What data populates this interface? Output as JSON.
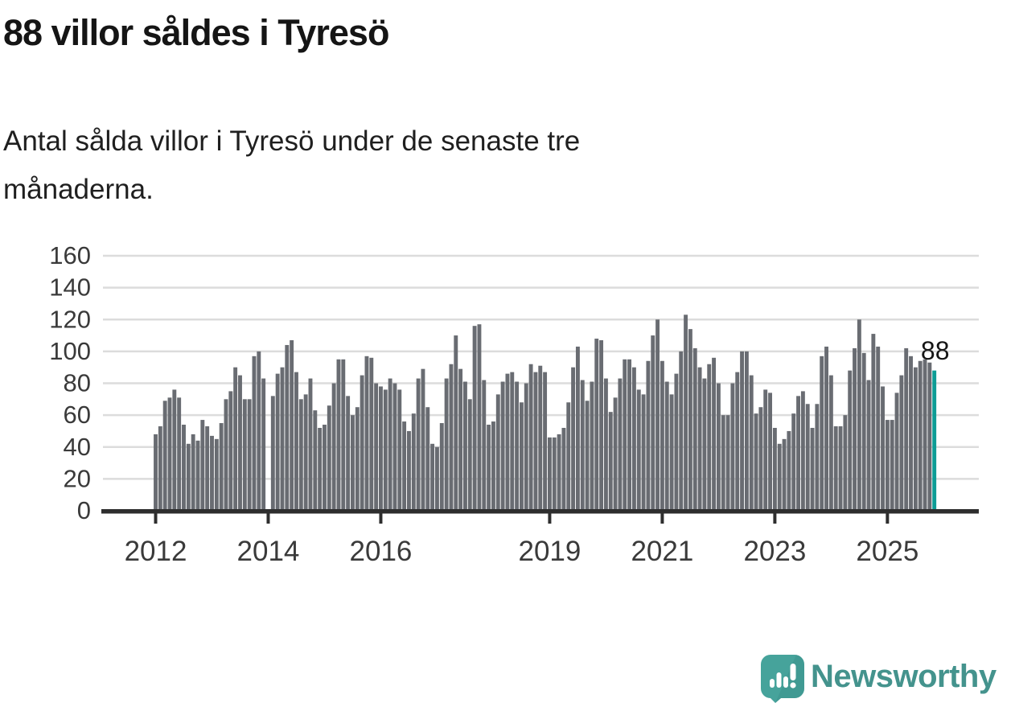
{
  "header": {
    "title": "88 villor såldes i Tyresö",
    "subtitle_line1": "Antal sålda villor i Tyresö under de senaste tre",
    "subtitle_line2": "månaderna."
  },
  "chart_data": {
    "type": "bar",
    "title": "88 villor såldes i Tyresö",
    "subtitle": "Antal sålda villor i Tyresö under de senaste tre månaderna.",
    "x_unit": "month",
    "start_month": "2012-01",
    "end_month": "2025-11",
    "frequency": "monthly",
    "ylim": [
      0,
      160
    ],
    "y_ticks": [
      0,
      20,
      40,
      60,
      80,
      100,
      120,
      140,
      160
    ],
    "grid": "horizontal",
    "x_ticks": [
      {
        "index": 0,
        "label": "2012"
      },
      {
        "index": 24,
        "label": "2014"
      },
      {
        "index": 48,
        "label": "2016"
      },
      {
        "index": 84,
        "label": "2019"
      },
      {
        "index": 108,
        "label": "2021"
      },
      {
        "index": 132,
        "label": "2023"
      },
      {
        "index": 156,
        "label": "2025"
      }
    ],
    "values": [
      48,
      53,
      69,
      71,
      76,
      71,
      54,
      42,
      48,
      44,
      57,
      53,
      47,
      45,
      55,
      70,
      75,
      90,
      85,
      70,
      70,
      97,
      100,
      83,
      null,
      72,
      86,
      90,
      104,
      107,
      87,
      70,
      73,
      83,
      63,
      52,
      54,
      66,
      80,
      95,
      95,
      72,
      60,
      65,
      85,
      97,
      96,
      80,
      78,
      76,
      83,
      80,
      76,
      56,
      50,
      61,
      83,
      89,
      65,
      42,
      40,
      55,
      83,
      92,
      110,
      89,
      81,
      70,
      116,
      117,
      82,
      54,
      56,
      73,
      81,
      86,
      87,
      81,
      68,
      80,
      92,
      87,
      91,
      87,
      46,
      46,
      48,
      52,
      68,
      90,
      103,
      82,
      69,
      81,
      108,
      107,
      83,
      62,
      71,
      83,
      95,
      95,
      90,
      76,
      73,
      94,
      110,
      120,
      94,
      81,
      73,
      86,
      100,
      123,
      114,
      102,
      90,
      83,
      92,
      96,
      80,
      60,
      60,
      80,
      87,
      100,
      100,
      85,
      61,
      65,
      76,
      74,
      52,
      42,
      45,
      50,
      61,
      72,
      75,
      67,
      52,
      67,
      97,
      103,
      85,
      53,
      53,
      60,
      88,
      102,
      120,
      99,
      82,
      111,
      103,
      78,
      57,
      57,
      74,
      85,
      102,
      97,
      90,
      94,
      95,
      93,
      88
    ],
    "highlight": {
      "index": 166,
      "value": 88,
      "label": "88"
    },
    "colors": {
      "bar": "#696c72",
      "highlight": "#0d9c95",
      "grid": "#dcdcdc",
      "axis": "#2e2e2e",
      "tick_label": "#3a3a3a",
      "value_label": "#151515"
    },
    "legend": "none"
  },
  "footer": {
    "brand": "Newsworthy",
    "brand_color": "#44938d",
    "logo_color": "#46a39b"
  }
}
